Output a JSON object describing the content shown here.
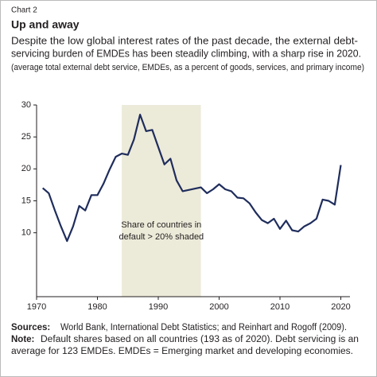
{
  "chart_data": {
    "type": "line",
    "label": "Chart 2",
    "title": "Up and away",
    "subtitle": [
      "Despite the low global interest rates of the past decade, the external debt-",
      "servicing burden of EMDEs has been steadily climbing, with a sharp rise in 2020."
    ],
    "units_note": "(average total external debt service, EMDEs, as a percent of goods, services, and primary income)",
    "x": [
      1971,
      1972,
      1973,
      1974,
      1975,
      1976,
      1977,
      1978,
      1979,
      1980,
      1981,
      1982,
      1983,
      1984,
      1985,
      1986,
      1987,
      1988,
      1989,
      1990,
      1991,
      1992,
      1993,
      1994,
      1995,
      1996,
      1997,
      1998,
      1999,
      2000,
      2001,
      2002,
      2003,
      2004,
      2005,
      2006,
      2007,
      2008,
      2009,
      2010,
      2011,
      2012,
      2013,
      2014,
      2015,
      2016,
      2017,
      2018,
      2019,
      2020
    ],
    "series": [
      {
        "name": "External debt service",
        "color": "#1f2d5c",
        "values": [
          17.0,
          16.2,
          13.5,
          11.0,
          8.7,
          11.0,
          14.2,
          13.5,
          15.9,
          15.9,
          17.7,
          19.9,
          21.9,
          22.4,
          22.2,
          24.6,
          28.5,
          25.9,
          26.1,
          23.4,
          20.7,
          21.6,
          18.2,
          16.5,
          16.7,
          16.9,
          17.1,
          16.2,
          16.8,
          17.6,
          16.8,
          16.5,
          15.5,
          15.4,
          14.6,
          13.2,
          12.0,
          11.5,
          12.2,
          10.6,
          11.9,
          10.4,
          10.2,
          11.0,
          11.5,
          12.2,
          15.2,
          15.0,
          14.4,
          20.6
        ]
      }
    ],
    "shade": [
      1984,
      1997
    ],
    "shade_color": "#ecead9",
    "annotation": [
      "Share of countries in",
      "default > 20% shaded"
    ],
    "xlim": [
      1970,
      2021.5
    ],
    "xticks": [
      1970,
      1980,
      1990,
      2000,
      2010,
      2020
    ],
    "ylim": [
      0,
      30
    ],
    "yticks": [
      10,
      15,
      20,
      25,
      30
    ],
    "sources_label": "Sources:",
    "sources": "World Bank, International Debt Statistics; and Reinhart and Rogoff (2009).",
    "note_label": "Note:",
    "note": [
      "Default shares based on all countries (193 as of 2020). Debt servicing is an",
      "average for 123 EMDEs. EMDEs = Emerging market and developing economies."
    ]
  }
}
